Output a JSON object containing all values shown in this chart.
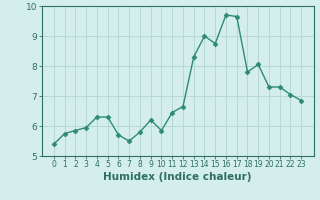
{
  "x": [
    0,
    1,
    2,
    3,
    4,
    5,
    6,
    7,
    8,
    9,
    10,
    11,
    12,
    13,
    14,
    15,
    16,
    17,
    18,
    19,
    20,
    21,
    22,
    23
  ],
  "y": [
    5.4,
    5.75,
    5.85,
    5.95,
    6.3,
    6.3,
    5.7,
    5.5,
    5.8,
    6.2,
    5.85,
    6.45,
    6.65,
    8.3,
    9.0,
    8.75,
    9.7,
    9.65,
    7.8,
    8.05,
    7.3,
    7.3,
    7.05,
    6.85
  ],
  "line_color": "#2e8b70",
  "marker": "D",
  "marker_size": 2.5,
  "bg_color": "#d4eeee",
  "grid_color": "#b8d8d8",
  "xlabel": "Humidex (Indice chaleur)",
  "xlabel_color": "#2e7060",
  "tick_color": "#2e7060",
  "spine_color": "#2e7060",
  "ylim": [
    5,
    10
  ],
  "yticks": [
    5,
    6,
    7,
    8,
    9,
    10
  ],
  "xticks": [
    0,
    1,
    2,
    3,
    4,
    5,
    6,
    7,
    8,
    9,
    10,
    11,
    12,
    13,
    14,
    15,
    16,
    17,
    18,
    19,
    20,
    21,
    22,
    23
  ],
  "line_width": 1.0,
  "xlabel_fontsize": 7.5,
  "xtick_fontsize": 5.5,
  "ytick_fontsize": 6.5
}
